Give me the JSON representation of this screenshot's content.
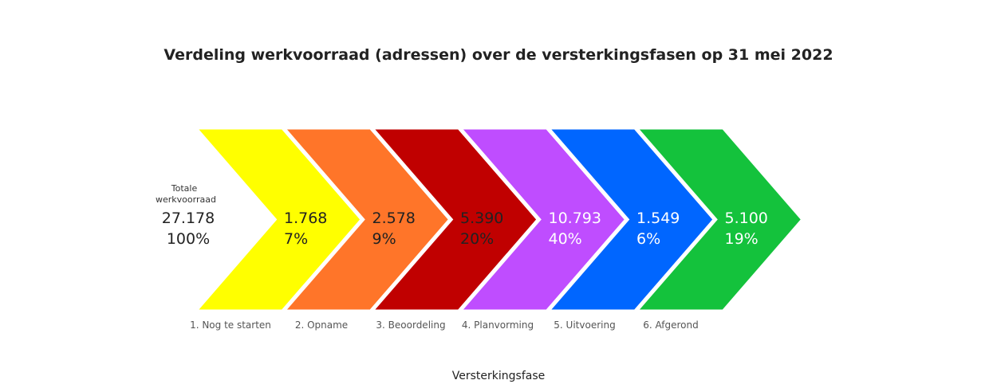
{
  "chart_data": {
    "type": "bar",
    "title": "Verdeling werkvoorraad (adressen) over de versterkingsfasen op 31 mei 2022",
    "xlabel": "Versterkingsfase",
    "total": {
      "label_line1": "Totale",
      "label_line2": "werkvoorraad",
      "value": "27.178",
      "percent": "100%"
    },
    "categories": [
      "1. Nog te starten",
      "2. Opname",
      "3. Beoordeling",
      "4. Planvorming",
      "5. Uitvoering",
      "6. Afgerond"
    ],
    "values": [
      1768,
      2578,
      5390,
      10793,
      1549,
      5100
    ],
    "value_labels": [
      "1.768",
      "2.578",
      "5.390",
      "10.793",
      "1.549",
      "5.100"
    ],
    "percent_labels": [
      "7%",
      "9%",
      "20%",
      "40%",
      "6%",
      "19%"
    ],
    "colors": [
      "#ffff00",
      "#ff7529",
      "#c00000",
      "#bf4dff",
      "#0066ff",
      "#14c23c"
    ],
    "text_colors": [
      "#222222",
      "#222222",
      "#222222",
      "#ffffff",
      "#ffffff",
      "#ffffff"
    ]
  }
}
